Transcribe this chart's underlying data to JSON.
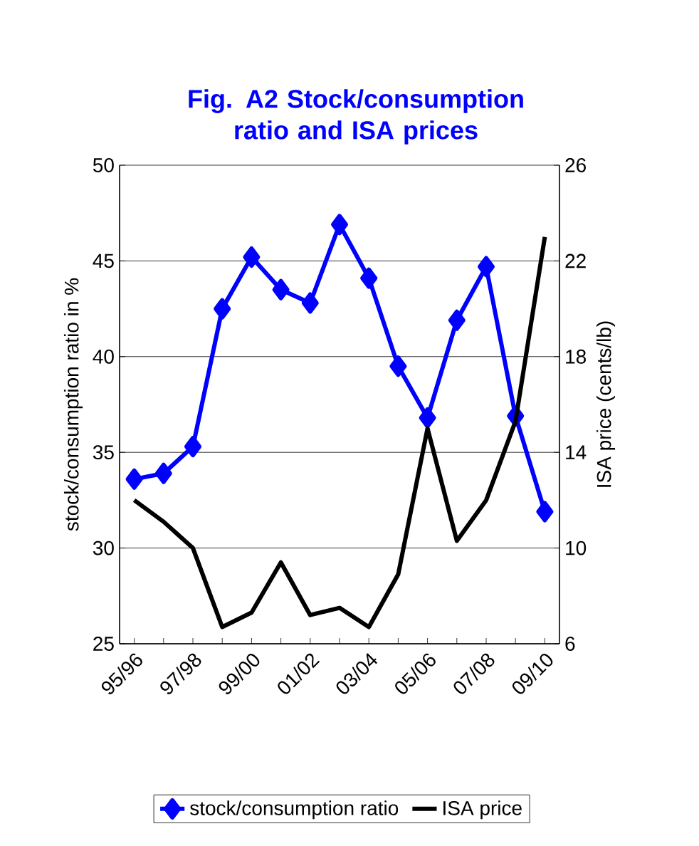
{
  "chart_data": {
    "type": "line",
    "title": "Fig. A2  Stock/consumption ratio and ISA prices",
    "categories": [
      "95/96",
      null,
      "97/98",
      null,
      "99/00",
      null,
      "01/02",
      null,
      "03/04",
      null,
      "05/06",
      null,
      "07/08",
      null,
      "09/10"
    ],
    "series": [
      {
        "name": "stock/consumption ratio",
        "color": "#0000ff",
        "marker": "diamond",
        "values": [
          33.6,
          33.9,
          35.3,
          42.5,
          45.2,
          43.5,
          42.8,
          46.9,
          44.1,
          39.5,
          36.8,
          41.9,
          44.7,
          36.9,
          31.9
        ]
      },
      {
        "name": "ISA price",
        "color": "#000000",
        "axis": "y2",
        "values": [
          12.0,
          11.1,
          10.0,
          6.7,
          7.3,
          9.4,
          7.2,
          7.5,
          6.7,
          8.9,
          15.0,
          10.3,
          12.0,
          15.3,
          23.0
        ]
      }
    ],
    "ylabel": "stock/consumption ratio in %",
    "y2label": "ISA price (cents/lb)",
    "ylim": [
      25,
      50
    ],
    "yticks": [
      25,
      30,
      35,
      40,
      45,
      50
    ],
    "y2lim": [
      6,
      26
    ],
    "y2ticks": [
      6,
      10,
      14,
      18,
      22,
      26
    ],
    "grid": "y",
    "legend": "bottom"
  }
}
